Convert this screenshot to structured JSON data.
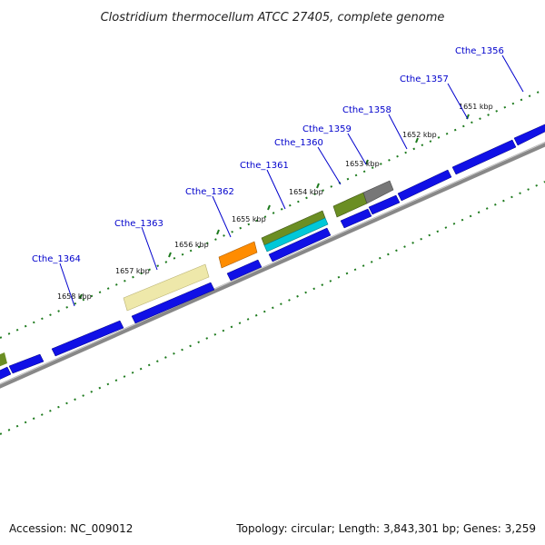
{
  "title": "Clostridium thermocellum ATCC 27405, complete genome",
  "footer": {
    "accession": "Accession: NC_009012",
    "summary": "Topology: circular; Length: 3,843,301 bp; Genes: 3,259"
  },
  "gene_labels": [
    "Cthe_1356",
    "Cthe_1357",
    "Cthe_1358",
    "Cthe_1359",
    "Cthe_1360",
    "Cthe_1361",
    "Cthe_1362",
    "Cthe_1363",
    "Cthe_1364"
  ],
  "kbp_labels": [
    "1651 kbp",
    "1652 kbp",
    "1653 kbp",
    "1654 kbp",
    "1655 kbp",
    "1656 kbp",
    "1657 kbp",
    "1658 kbp"
  ],
  "colors": {
    "cds": "#1010e6",
    "backbone": "#888888",
    "tick": "#1d7a1d",
    "label": "#0000cc",
    "olive": "#6b8e23",
    "khaki": "#eee8aa",
    "orange": "#ff8c00",
    "cyan": "#00c8d8",
    "gray": "#777777"
  }
}
